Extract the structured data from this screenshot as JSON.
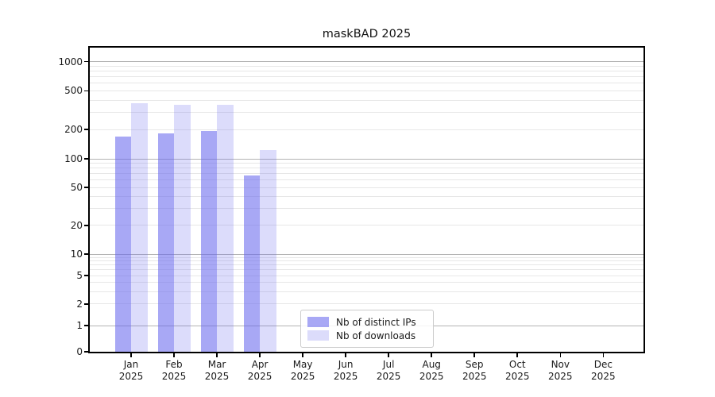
{
  "chart_data": {
    "type": "bar",
    "title": "maskBAD 2025",
    "x_categories": [
      "Jan",
      "Feb",
      "Mar",
      "Apr",
      "May",
      "Jun",
      "Jul",
      "Aug",
      "Sep",
      "Oct",
      "Nov",
      "Dec"
    ],
    "x_year_line": "2025",
    "series": [
      {
        "name": "Nb of distinct IPs",
        "color": "rgba(102,102,238,0.57)",
        "values": [
          170,
          182,
          192,
          67,
          0,
          0,
          0,
          0,
          0,
          0,
          0,
          0
        ]
      },
      {
        "name": "Nb of downloads",
        "color": "rgba(102,102,238,0.23)",
        "values": [
          372,
          356,
          356,
          122,
          0,
          0,
          0,
          0,
          0,
          0,
          0,
          0
        ]
      }
    ],
    "y_axis": {
      "scale": "symlog",
      "ticks": [
        0,
        1,
        2,
        5,
        10,
        20,
        50,
        100,
        200,
        500,
        1000
      ],
      "range": [
        0,
        1390
      ]
    },
    "grid": {
      "visible": true,
      "major_values": [
        1,
        10,
        100,
        1000
      ],
      "minor_multiples": [
        2,
        3,
        4,
        5,
        6,
        7,
        8,
        9
      ],
      "major_color": "#b3b3b3",
      "minor_color": "#e7e7e7"
    },
    "legend": {
      "position": "lower center",
      "entries": [
        "Nb of distinct IPs",
        "Nb of downloads"
      ]
    },
    "xlabel": "",
    "ylabel": ""
  }
}
